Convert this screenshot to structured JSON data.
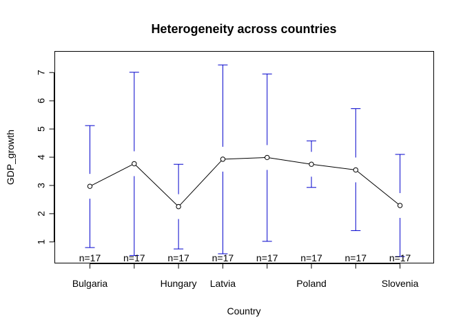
{
  "chart_data": {
    "type": "line",
    "title": "Heterogeneity across countries",
    "xlabel": "Country",
    "ylabel": "GDP_growth",
    "ylim": [
      0.25,
      7.75
    ],
    "yticks": [
      1,
      2,
      3,
      4,
      5,
      6,
      7
    ],
    "categories": [
      "Bulgaria",
      "",
      "Hungary",
      "Latvia",
      "",
      "Poland",
      "",
      "Slovenia"
    ],
    "series": [
      {
        "mean": [
          2.97,
          3.77,
          2.25,
          3.93,
          3.99,
          3.75,
          3.55,
          2.29
        ],
        "lower": [
          0.8,
          0.52,
          0.75,
          0.58,
          1.02,
          2.93,
          1.4,
          0.48
        ],
        "upper": [
          5.12,
          7.01,
          3.75,
          7.27,
          6.95,
          4.58,
          5.72,
          4.1
        ]
      }
    ],
    "n_labels": [
      "n=17",
      "n=17",
      "n=17",
      "n=17",
      "n=17",
      "n=17",
      "n=17",
      "n=17"
    ],
    "grid": false,
    "colors": {
      "error_bars": "#0000cc",
      "line": "#000000"
    }
  }
}
